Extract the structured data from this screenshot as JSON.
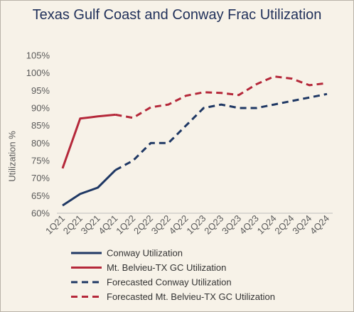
{
  "chart_data": {
    "type": "line",
    "title": "Texas Gulf Coast and Conway Frac Utilization",
    "ylabel": "Utilization %",
    "xlabel": "",
    "ylim": [
      60,
      105
    ],
    "yticks": [
      "60%",
      "65%",
      "70%",
      "75%",
      "80%",
      "85%",
      "90%",
      "95%",
      "100%",
      "105%"
    ],
    "yticks_values": [
      60,
      65,
      70,
      75,
      80,
      85,
      90,
      95,
      100,
      105
    ],
    "categories": [
      "1Q21",
      "2Q21",
      "3Q21",
      "4Q21",
      "1Q22",
      "2Q22",
      "3Q22",
      "4Q22",
      "1Q23",
      "2Q23",
      "3Q23",
      "4Q23",
      "1Q24",
      "2Q24",
      "3Q24",
      "4Q24"
    ],
    "grid": false,
    "legend_position": "bottom",
    "series": [
      {
        "name": "Conway Utilization",
        "color": "#1f3864",
        "style": "solid",
        "values": [
          62.2,
          65.5,
          67.3,
          72.3,
          null,
          null,
          null,
          null,
          null,
          null,
          null,
          null,
          null,
          null,
          null,
          null
        ]
      },
      {
        "name": "Mt. Belvieu-TX GC Utilization",
        "color": "#b5283a",
        "style": "solid",
        "values": [
          72.8,
          87.0,
          87.6,
          88.1,
          null,
          null,
          null,
          null,
          null,
          null,
          null,
          null,
          null,
          null,
          null,
          null
        ]
      },
      {
        "name": "Forecasted Conway Utilization",
        "color": "#1f3864",
        "style": "dashed",
        "values": [
          null,
          null,
          null,
          72.3,
          75.0,
          80.0,
          80.0,
          85.0,
          90.0,
          91.0,
          90.0,
          90.0,
          91.0,
          92.0,
          93.0,
          94.0
        ]
      },
      {
        "name": "Forecasted Mt. Belvieu-TX GC Utilization",
        "color": "#b5283a",
        "style": "dashed",
        "values": [
          null,
          null,
          null,
          88.1,
          87.2,
          90.2,
          91.0,
          93.5,
          94.5,
          94.3,
          93.7,
          96.8,
          99.0,
          98.4,
          96.5,
          97.1
        ]
      }
    ]
  }
}
